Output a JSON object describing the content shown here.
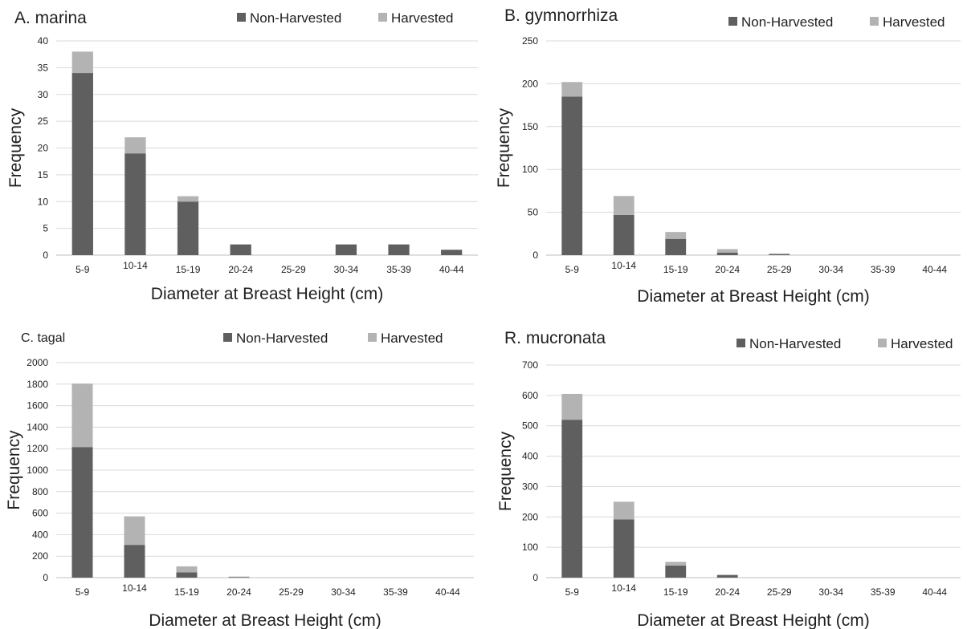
{
  "chart_data": [
    {
      "type": "bar",
      "stacked": true,
      "title": "A. marina",
      "xlabel": "Diameter at Breast Height (cm)",
      "ylabel": "Frequency",
      "categories": [
        "5-9",
        "10-14",
        "15-19",
        "20-24",
        "25-29",
        "30-34",
        "35-39",
        "40-44"
      ],
      "ylim": [
        0,
        40
      ],
      "yticks": [
        0,
        5,
        10,
        15,
        20,
        25,
        30,
        35,
        40
      ],
      "series": [
        {
          "name": "Non-Harvested",
          "color": "#5f5f5f",
          "values": [
            34,
            19,
            10,
            2,
            0,
            2,
            2,
            1
          ]
        },
        {
          "name": "Harvested",
          "color": "#b3b3b3",
          "values": [
            4,
            3,
            1,
            0,
            0,
            0,
            0,
            0
          ]
        }
      ],
      "grid": true,
      "legend": "top-right"
    },
    {
      "type": "bar",
      "stacked": true,
      "title": "B. gymnorrhiza",
      "xlabel": "Diameter at Breast Height (cm)",
      "ylabel": "Frequency",
      "categories": [
        "5-9",
        "10-14",
        "15-19",
        "20-24",
        "25-29",
        "30-34",
        "35-39",
        "40-44"
      ],
      "ylim": [
        0,
        250
      ],
      "yticks": [
        0,
        50,
        100,
        150,
        200,
        250
      ],
      "series": [
        {
          "name": "Non-Harvested",
          "color": "#5f5f5f",
          "values": [
            185,
            47,
            19,
            3,
            1,
            0,
            0,
            0
          ]
        },
        {
          "name": "Harvested",
          "color": "#b3b3b3",
          "values": [
            17,
            22,
            8,
            4,
            1,
            0,
            0,
            0
          ]
        }
      ],
      "grid": true,
      "legend": "top-right"
    },
    {
      "type": "bar",
      "stacked": true,
      "title": "C. tagal",
      "xlabel": "Diameter at Breast Height (cm)",
      "ylabel": "Frequency",
      "categories": [
        "5-9",
        "10-14",
        "15-19",
        "20-24",
        "25-29",
        "30-34",
        "35-39",
        "40-44"
      ],
      "ylim": [
        0,
        2000
      ],
      "yticks": [
        0,
        200,
        400,
        600,
        800,
        1000,
        1200,
        1400,
        1600,
        1800,
        2000
      ],
      "series": [
        {
          "name": "Non-Harvested",
          "color": "#5f5f5f",
          "values": [
            1215,
            305,
            50,
            5,
            0,
            0,
            0,
            0
          ]
        },
        {
          "name": "Harvested",
          "color": "#b3b3b3",
          "values": [
            590,
            265,
            55,
            5,
            0,
            0,
            0,
            0
          ]
        }
      ],
      "grid": true,
      "legend": "top-right"
    },
    {
      "type": "bar",
      "stacked": true,
      "title": "R. mucronata",
      "xlabel": "Diameter at Breast Height (cm)",
      "ylabel": "Frequency",
      "categories": [
        "5-9",
        "10-14",
        "15-19",
        "20-24",
        "25-29",
        "30-34",
        "35-39",
        "40-44"
      ],
      "ylim": [
        0,
        700
      ],
      "yticks": [
        0,
        100,
        200,
        300,
        400,
        500,
        600,
        700
      ],
      "series": [
        {
          "name": "Non-Harvested",
          "color": "#5f5f5f",
          "values": [
            520,
            192,
            40,
            8,
            0,
            0,
            0,
            0
          ]
        },
        {
          "name": "Harvested",
          "color": "#b3b3b3",
          "values": [
            85,
            58,
            12,
            2,
            0,
            0,
            0,
            0
          ]
        }
      ],
      "grid": true,
      "legend": "top-right"
    }
  ]
}
